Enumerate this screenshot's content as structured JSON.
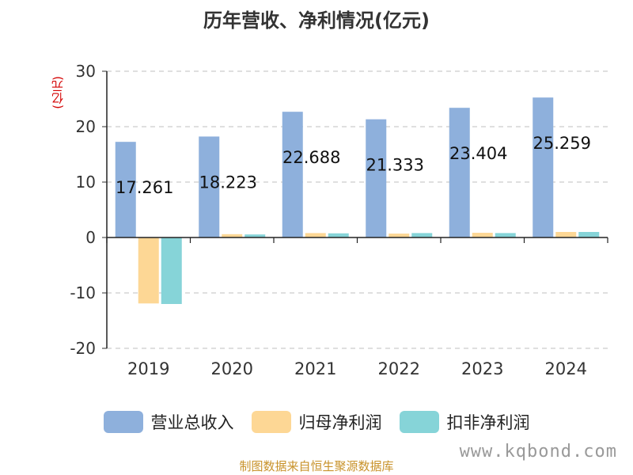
{
  "chart_data": {
    "type": "bar",
    "title": "历年营收、净利情况(亿元)",
    "ylabel": "(亿元)",
    "xlabel": "",
    "categories": [
      "2019",
      "2020",
      "2021",
      "2022",
      "2023",
      "2024"
    ],
    "ylim": [
      -20,
      30
    ],
    "yticks": [
      -20,
      -10,
      0,
      10,
      20,
      30
    ],
    "grid": true,
    "legend_position": "bottom",
    "series": [
      {
        "name": "营业总收入",
        "color": "#8eb0dc",
        "values": [
          17.261,
          18.223,
          22.688,
          21.333,
          23.404,
          25.259
        ],
        "labels": [
          "17.261",
          "18.223",
          "22.688",
          "21.333",
          "23.404",
          "25.259"
        ]
      },
      {
        "name": "归母净利润",
        "color": "#fdd795",
        "values": [
          -11.9,
          0.6,
          0.8,
          0.7,
          0.85,
          1.0
        ]
      },
      {
        "name": "扣非净利润",
        "color": "#86d4d8",
        "values": [
          -12.0,
          0.55,
          0.75,
          0.8,
          0.8,
          1.0
        ]
      }
    ]
  },
  "footer": {
    "source": "制图数据来自恒生聚源数据库",
    "watermark": "www.kqbond.com"
  }
}
